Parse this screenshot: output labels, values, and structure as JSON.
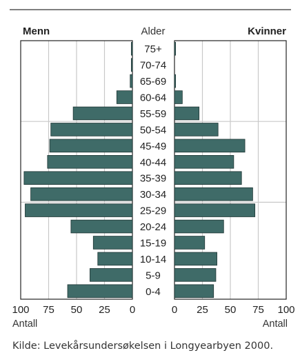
{
  "chart_data": {
    "type": "bar",
    "orientation": "population-pyramid",
    "header_left": "Menn",
    "header_center": "Alder",
    "header_right": "Kvinner",
    "categories": [
      "75+",
      "70-74",
      "65-69",
      "60-64",
      "55-59",
      "50-54",
      "45-49",
      "40-44",
      "35-39",
      "30-34",
      "25-29",
      "20-24",
      "15-19",
      "10-14",
      "5-9",
      "0-4"
    ],
    "series": [
      {
        "name": "Menn",
        "values": [
          1,
          1,
          2,
          14,
          53,
          73,
          74,
          76,
          97,
          91,
          96,
          55,
          35,
          31,
          38,
          58
        ]
      },
      {
        "name": "Kvinner",
        "values": [
          1,
          0,
          1,
          7,
          22,
          39,
          63,
          53,
          60,
          70,
          72,
          44,
          27,
          38,
          37,
          35
        ]
      }
    ],
    "left_axis": {
      "range": [
        100,
        0
      ],
      "ticks": [
        100,
        75,
        50,
        25,
        0
      ],
      "label": "Antall"
    },
    "right_axis": {
      "range": [
        0,
        100
      ],
      "ticks": [
        0,
        25,
        50,
        75,
        100
      ],
      "label": "Antall"
    },
    "grid": true,
    "colors": {
      "bar": "#3f6b68",
      "bar_edge": "#1e3534",
      "grid": "#c8c8c8",
      "frame": "#222222"
    },
    "source": "Kilde: Levekårsundersøkelsen i Longyearbyen 2000."
  }
}
